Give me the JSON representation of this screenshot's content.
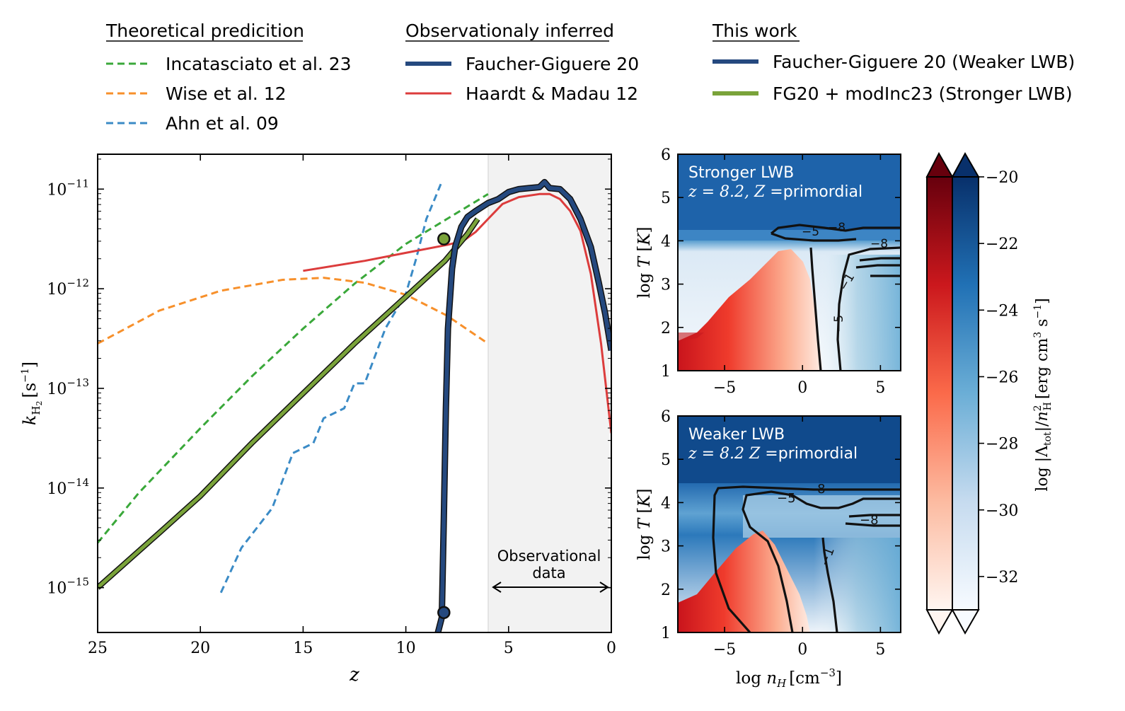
{
  "legend": {
    "groups": [
      {
        "title": "Theoretical predicition",
        "entries": [
          {
            "label": "Incatasciato et al. 23",
            "color": "#3aa83a",
            "style": "dashed"
          },
          {
            "label": "Wise et al. 12",
            "color": "#f7902b",
            "style": "dashed"
          },
          {
            "label": "Ahn et al. 09",
            "color": "#3b8bc6",
            "style": "dashed"
          }
        ]
      },
      {
        "title": "Observationaly inferred",
        "entries": [
          {
            "label": "Faucher-Giguere 20",
            "color": "#25497f",
            "style": "thick"
          },
          {
            "label": "Haardt & Madau 12",
            "color": "#dc3c3c",
            "style": "solid"
          }
        ]
      },
      {
        "title": "This work",
        "entries": [
          {
            "label": "Faucher-Giguere 20 (Weaker LWB)",
            "color": "#25497f",
            "style": "thick"
          },
          {
            "label": "FG20 + modInc23 (Stronger LWB)",
            "color": "#7aa33a",
            "style": "thick"
          }
        ]
      }
    ]
  },
  "chart_data": [
    {
      "type": "line",
      "xlabel": "z",
      "ylabel": "k_H2 [s^-1]",
      "xlim": [
        25,
        0
      ],
      "ylog": true,
      "ylim_log10": [
        -15.45,
        -10.65
      ],
      "xticks": [
        25,
        20,
        15,
        10,
        5,
        0
      ],
      "yticks": [
        -15,
        -14,
        -13,
        -12,
        -11
      ],
      "shaded_region": {
        "x_from": 6,
        "x_to": 0,
        "label_line1": "Observational",
        "label_line2": "data"
      },
      "series": [
        {
          "name": "Incatasciato et al. 23",
          "color": "#3aa83a",
          "dash": true,
          "width": 3,
          "x": [
            25,
            23,
            20,
            17.5,
            15,
            12.5,
            10,
            8,
            6
          ],
          "log10_y": [
            -14.55,
            -14.05,
            -13.4,
            -12.88,
            -12.4,
            -11.95,
            -11.55,
            -11.3,
            -11.05
          ]
        },
        {
          "name": "Wise et al. 12",
          "color": "#f7902b",
          "dash": true,
          "width": 3,
          "x": [
            25,
            22,
            19,
            16,
            14,
            12,
            10,
            8,
            6
          ],
          "log10_y": [
            -12.55,
            -12.22,
            -12.02,
            -11.91,
            -11.89,
            -11.94,
            -12.06,
            -12.27,
            -12.55
          ]
        },
        {
          "name": "Ahn et al. 09",
          "color": "#3b8bc6",
          "dash": true,
          "width": 3,
          "x": [
            19,
            18,
            16.5,
            15.5,
            14.5,
            14,
            13,
            12.5,
            12,
            11,
            10,
            9.5,
            9,
            8.6,
            8.3
          ],
          "log10_y": [
            -15.05,
            -14.6,
            -14.2,
            -13.65,
            -13.55,
            -13.3,
            -13.2,
            -12.95,
            -12.95,
            -12.4,
            -12.05,
            -11.7,
            -11.3,
            -11.1,
            -10.95
          ]
        },
        {
          "name": "Haardt & Madau 12",
          "color": "#dc3c3c",
          "dash": false,
          "width": 3,
          "x": [
            15,
            12,
            10,
            8,
            7.2,
            6.6,
            6,
            5.3,
            4.5,
            3.5,
            3,
            2.5,
            2,
            1.5,
            1,
            0.5,
            0
          ],
          "log10_y": [
            -11.82,
            -11.72,
            -11.64,
            -11.56,
            -11.52,
            -11.43,
            -11.3,
            -11.15,
            -11.08,
            -11.05,
            -11.05,
            -11.1,
            -11.22,
            -11.42,
            -11.85,
            -12.55,
            -13.45
          ]
        },
        {
          "name": "FG20 + modInc23 (Stronger LWB)",
          "color": "#7aa33a",
          "dash": false,
          "width": 5,
          "outline": true,
          "x": [
            25,
            22,
            20,
            17.5,
            15,
            12.5,
            10,
            8.1,
            7,
            6.5
          ],
          "log10_y": [
            -15.0,
            -14.45,
            -14.08,
            -13.55,
            -13.05,
            -12.55,
            -12.08,
            -11.72,
            -11.45,
            -11.3
          ]
        },
        {
          "name": "Faucher-Giguere 20 (Weaker LWB)",
          "color": "#25497f",
          "dash": false,
          "width": 6,
          "outline": true,
          "x": [
            8.5,
            8.25,
            8.15,
            8.05,
            7.95,
            7.75,
            7.6,
            7.3,
            7,
            6.6,
            6,
            5.5,
            5,
            4.5,
            4,
            3.5,
            3.25,
            3,
            2.5,
            2,
            1.5,
            1,
            0.6,
            0.3,
            0
          ],
          "log10_y": [
            -15.5,
            -15.3,
            -14.3,
            -13.2,
            -12.4,
            -11.8,
            -11.58,
            -11.38,
            -11.28,
            -11.22,
            -11.14,
            -11.1,
            -11.03,
            -11.0,
            -10.99,
            -10.98,
            -10.93,
            -10.99,
            -11.0,
            -11.1,
            -11.3,
            -11.58,
            -11.95,
            -12.25,
            -12.62
          ]
        }
      ],
      "markers": [
        {
          "x": 8.15,
          "log10_y": -11.5,
          "color": "#7aa33a"
        },
        {
          "x": 8.15,
          "log10_y": -15.25,
          "color": "#25497f"
        }
      ]
    },
    {
      "type": "heatmap",
      "title_line1": "Stronger LWB",
      "title_line2_math": "z = 8.2,",
      "title_line2_math2": "Z",
      "title_line2_text": "=primordial",
      "xlabel": "log n_H [cm^-3]",
      "ylabel": "log T [K]",
      "xlim": [
        -8,
        6.3
      ],
      "ylim": [
        1,
        6
      ],
      "xticks": [
        -5,
        0,
        5
      ],
      "yticks": [
        1,
        2,
        3,
        4,
        5,
        6
      ],
      "contour_labels": [
        "−5",
        "−8",
        "−8",
        "−1",
        "−5"
      ]
    },
    {
      "type": "heatmap",
      "title_line1": "Weaker LWB",
      "title_line2_math": "z = 8.2",
      "title_line2_math2": "Z",
      "title_line2_text": "=primordial",
      "xlabel": "log n_H [cm^-3]",
      "ylabel": "log T [K]",
      "xlim": [
        -8,
        6.3
      ],
      "ylim": [
        1,
        6
      ],
      "xticks": [
        -5,
        0,
        5
      ],
      "yticks": [
        1,
        2,
        3,
        4,
        5,
        6
      ],
      "contour_labels": [
        "−5",
        "−8",
        "−8",
        "−1"
      ]
    },
    {
      "type": "colorbar",
      "label": "log |Λtot|/n²H [erg cm³ s⁻¹]",
      "range": [
        -33,
        -20
      ],
      "ticks": [
        -20,
        -22,
        -24,
        -26,
        -28,
        -30,
        -32
      ]
    }
  ]
}
